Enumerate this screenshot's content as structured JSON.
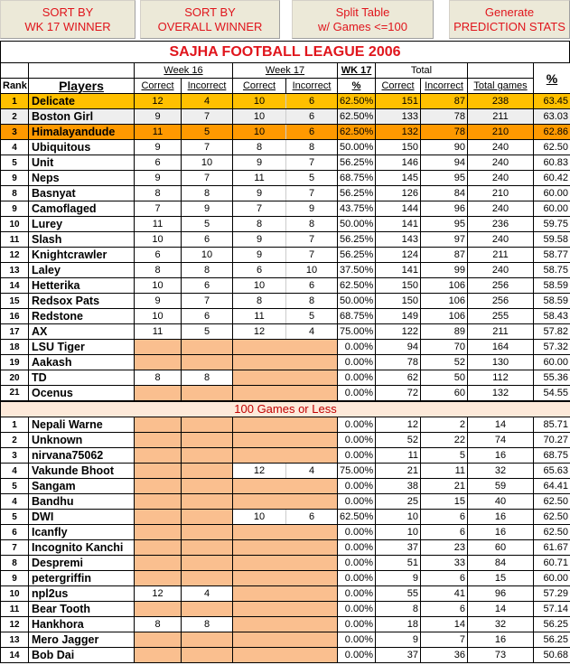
{
  "buttons": [
    {
      "line1": "SORT BY",
      "line2": "WK 17 WINNER"
    },
    {
      "line1": "SORT BY",
      "line2": "OVERALL WINNER"
    },
    {
      "line1": "Split Table",
      "line2": "w/ Games <=100"
    },
    {
      "line1": "Generate",
      "line2": "PREDICTION STATS"
    }
  ],
  "title": "SAJHA FOOTBALL LEAGUE 2006",
  "headers": {
    "week16": "Week 16",
    "week17": "Week 17",
    "wk17": "WK 17",
    "total": "Total",
    "pct_top": "%",
    "rank": "Rank",
    "players": "Players",
    "correct": "Correct",
    "incorrect": "Incorrect",
    "wk17_pct": "%",
    "total_games": "Total games"
  },
  "colors": {
    "button_text": "#e0151c",
    "row1": "#ffc000",
    "row2": "#eeeeee",
    "row3": "#ff9900",
    "empty_cell": "#fabf8f"
  },
  "main_rows": [
    [
      "1",
      "Delicate",
      "12",
      "4",
      "10",
      "6",
      "62.50%",
      "151",
      "87",
      "238",
      "63.45"
    ],
    [
      "2",
      "Boston Girl",
      "9",
      "7",
      "10",
      "6",
      "62.50%",
      "133",
      "78",
      "211",
      "63.03"
    ],
    [
      "3",
      "Himalayandude",
      "11",
      "5",
      "10",
      "6",
      "62.50%",
      "132",
      "78",
      "210",
      "62.86"
    ],
    [
      "4",
      "Ubiquitous",
      "9",
      "7",
      "8",
      "8",
      "50.00%",
      "150",
      "90",
      "240",
      "62.50"
    ],
    [
      "5",
      "Unit",
      "6",
      "10",
      "9",
      "7",
      "56.25%",
      "146",
      "94",
      "240",
      "60.83"
    ],
    [
      "9",
      "Neps",
      "9",
      "7",
      "11",
      "5",
      "68.75%",
      "145",
      "95",
      "240",
      "60.42"
    ],
    [
      "8",
      "Basnyat",
      "8",
      "8",
      "9",
      "7",
      "56.25%",
      "126",
      "84",
      "210",
      "60.00"
    ],
    [
      "9",
      "Camoflaged",
      "7",
      "9",
      "7",
      "9",
      "43.75%",
      "144",
      "96",
      "240",
      "60.00"
    ],
    [
      "10",
      "Lurey",
      "11",
      "5",
      "8",
      "8",
      "50.00%",
      "141",
      "95",
      "236",
      "59.75"
    ],
    [
      "11",
      "Slash",
      "10",
      "6",
      "9",
      "7",
      "56.25%",
      "143",
      "97",
      "240",
      "59.58"
    ],
    [
      "12",
      "Knightcrawler",
      "6",
      "10",
      "9",
      "7",
      "56.25%",
      "124",
      "87",
      "211",
      "58.77"
    ],
    [
      "13",
      "Laley",
      "8",
      "8",
      "6",
      "10",
      "37.50%",
      "141",
      "99",
      "240",
      "58.75"
    ],
    [
      "14",
      "Hetterika",
      "10",
      "6",
      "10",
      "6",
      "62.50%",
      "150",
      "106",
      "256",
      "58.59"
    ],
    [
      "15",
      "Redsox Pats",
      "9",
      "7",
      "8",
      "8",
      "50.00%",
      "150",
      "106",
      "256",
      "58.59"
    ],
    [
      "16",
      "Redstone",
      "10",
      "6",
      "11",
      "5",
      "68.75%",
      "149",
      "106",
      "255",
      "58.43"
    ],
    [
      "17",
      "AX",
      "11",
      "5",
      "12",
      "4",
      "75.00%",
      "122",
      "89",
      "211",
      "57.82"
    ],
    [
      "18",
      "LSU Tiger",
      null,
      null,
      null,
      null,
      "0.00%",
      "94",
      "70",
      "164",
      "57.32"
    ],
    [
      "19",
      "Aakash",
      null,
      null,
      null,
      null,
      "0.00%",
      "78",
      "52",
      "130",
      "60.00"
    ],
    [
      "20",
      "TD",
      "8",
      "8",
      null,
      null,
      "0.00%",
      "62",
      "50",
      "112",
      "55.36"
    ],
    [
      "21",
      "Ocenus",
      null,
      null,
      null,
      null,
      "0.00%",
      "72",
      "60",
      "132",
      "54.55"
    ]
  ],
  "section_label": "100 Games or Less",
  "small_rows": [
    [
      "1",
      "Nepali Warne",
      null,
      null,
      null,
      null,
      "0.00%",
      "12",
      "2",
      "14",
      "85.71"
    ],
    [
      "2",
      "Unknown",
      null,
      null,
      null,
      null,
      "0.00%",
      "52",
      "22",
      "74",
      "70.27"
    ],
    [
      "3",
      "nirvana75062",
      null,
      null,
      null,
      null,
      "0.00%",
      "11",
      "5",
      "16",
      "68.75"
    ],
    [
      "4",
      "Vakunde Bhoot",
      null,
      null,
      "12",
      "4",
      "75.00%",
      "21",
      "11",
      "32",
      "65.63"
    ],
    [
      "5",
      "Sangam",
      null,
      null,
      null,
      null,
      "0.00%",
      "38",
      "21",
      "59",
      "64.41"
    ],
    [
      "4",
      "Bandhu",
      null,
      null,
      null,
      null,
      "0.00%",
      "25",
      "15",
      "40",
      "62.50"
    ],
    [
      "5",
      "DWI",
      null,
      null,
      "10",
      "6",
      "62.50%",
      "10",
      "6",
      "16",
      "62.50"
    ],
    [
      "6",
      "Icanfly",
      null,
      null,
      null,
      null,
      "0.00%",
      "10",
      "6",
      "16",
      "62.50"
    ],
    [
      "7",
      "Incognito Kanchi",
      null,
      null,
      null,
      null,
      "0.00%",
      "37",
      "23",
      "60",
      "61.67"
    ],
    [
      "8",
      "Despremi",
      null,
      null,
      null,
      null,
      "0.00%",
      "51",
      "33",
      "84",
      "60.71"
    ],
    [
      "9",
      "petergriffin",
      null,
      null,
      null,
      null,
      "0.00%",
      "9",
      "6",
      "15",
      "60.00"
    ],
    [
      "10",
      "npl2us",
      "12",
      "4",
      null,
      null,
      "0.00%",
      "55",
      "41",
      "96",
      "57.29"
    ],
    [
      "11",
      "Bear Tooth",
      null,
      null,
      null,
      null,
      "0.00%",
      "8",
      "6",
      "14",
      "57.14"
    ],
    [
      "12",
      "Hankhora",
      "8",
      "8",
      null,
      null,
      "0.00%",
      "18",
      "14",
      "32",
      "56.25"
    ],
    [
      "13",
      "Mero Jagger",
      null,
      null,
      null,
      null,
      "0.00%",
      "9",
      "7",
      "16",
      "56.25"
    ],
    [
      "14",
      "Bob Dai",
      null,
      null,
      null,
      null,
      "0.00%",
      "37",
      "36",
      "73",
      "50.68"
    ]
  ]
}
